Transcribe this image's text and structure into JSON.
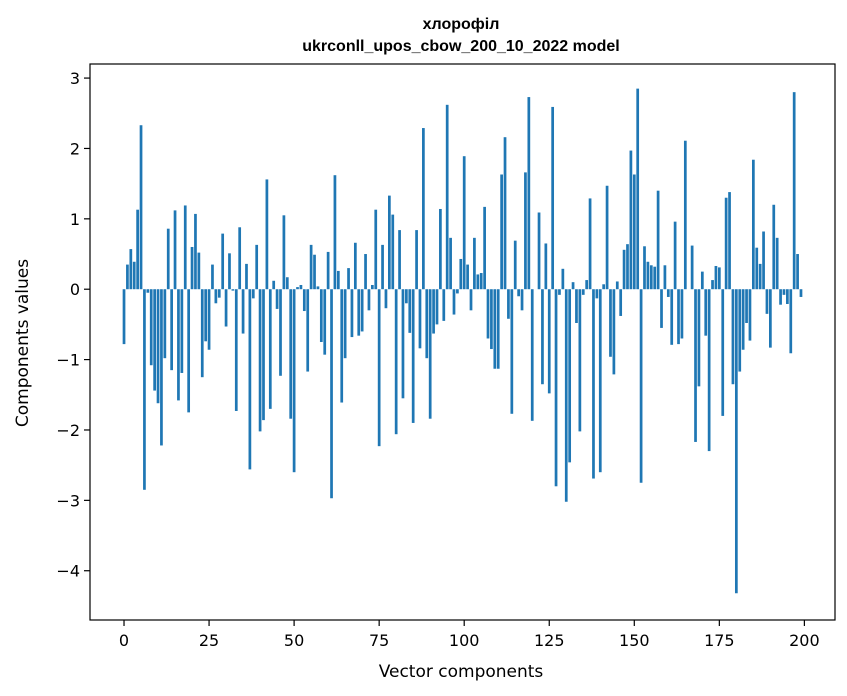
{
  "chart_data": {
    "type": "bar",
    "title": "хлорофіл",
    "subtitle": "ukrconll_upos_cbow_200_10_2022 model",
    "xlabel": "Vector components",
    "ylabel": "Components values",
    "xlim": [
      -10,
      209
    ],
    "ylim": [
      -4.7,
      3.2
    ],
    "xticks": [
      0,
      25,
      50,
      75,
      100,
      125,
      150,
      175,
      200
    ],
    "yticks": [
      -4,
      -3,
      -2,
      -1,
      0,
      1,
      2,
      3
    ],
    "grid": false,
    "bar_color": "#1f77b4",
    "series": [
      {
        "values": [
          -0.78,
          0.35,
          0.57,
          0.39,
          1.13,
          2.33,
          -2.85,
          -0.05,
          -1.08,
          -1.44,
          -1.62,
          -2.22,
          -0.98,
          0.86,
          -1.15,
          1.12,
          -1.58,
          -1.19,
          1.19,
          -1.75,
          0.6,
          1.07,
          0.52,
          -1.25,
          -0.74,
          -0.86,
          0.35,
          -0.2,
          -0.12,
          0.79,
          -0.53,
          0.51,
          -0.02,
          -1.73,
          0.88,
          -0.63,
          0.36,
          -2.56,
          -0.13,
          0.63,
          -2.02,
          -1.86,
          1.56,
          -1.7,
          0.12,
          -0.28,
          -1.23,
          1.05,
          0.17,
          -1.84,
          -2.6,
          0.03,
          0.06,
          -0.31,
          -1.17,
          0.63,
          0.49,
          0.04,
          -0.75,
          -0.93,
          0.53,
          -2.97,
          1.62,
          0.26,
          -1.61,
          -0.98,
          0.3,
          -0.68,
          0.66,
          -0.66,
          -0.6,
          0.5,
          -0.3,
          0.06,
          1.13,
          -2.23,
          0.63,
          -0.27,
          1.33,
          1.06,
          -2.06,
          0.84,
          -1.55,
          -0.2,
          -0.62,
          -1.9,
          0.84,
          -0.84,
          2.29,
          -0.98,
          -1.84,
          -0.63,
          -0.5,
          1.14,
          -0.45,
          2.62,
          0.73,
          -0.36,
          -0.06,
          0.43,
          1.89,
          0.35,
          -0.3,
          0.73,
          0.21,
          0.23,
          1.17,
          -0.7,
          -0.85,
          -1.13,
          -1.13,
          1.63,
          2.16,
          -0.42,
          -1.77,
          0.69,
          -0.1,
          -0.3,
          1.66,
          2.73,
          -1.87,
          0.0,
          1.09,
          -1.35,
          0.65,
          -1.48,
          2.59,
          -2.8,
          -0.08,
          0.29,
          -3.02,
          -2.46,
          0.1,
          -0.48,
          -2.02,
          -0.08,
          0.13,
          1.29,
          -2.69,
          -0.13,
          -2.6,
          0.07,
          1.47,
          -0.96,
          -1.21,
          0.11,
          -0.38,
          0.56,
          0.64,
          1.97,
          1.63,
          2.85,
          -2.75,
          0.61,
          0.39,
          0.34,
          0.32,
          1.4,
          -0.55,
          0.34,
          -0.11,
          -0.79,
          0.96,
          -0.78,
          -0.7,
          2.11,
          0.0,
          0.62,
          -2.17,
          -1.38,
          0.25,
          -0.66,
          -2.3,
          0.13,
          0.33,
          0.31,
          -1.8,
          1.3,
          1.38,
          -1.35,
          -4.32,
          -1.17,
          -0.86,
          -0.48,
          -0.73,
          1.84,
          0.59,
          0.36,
          0.82,
          -0.35,
          -0.83,
          1.2,
          0.73,
          -0.22,
          -0.08,
          -0.21,
          -0.91,
          2.8,
          0.5,
          -0.11
        ]
      }
    ]
  }
}
